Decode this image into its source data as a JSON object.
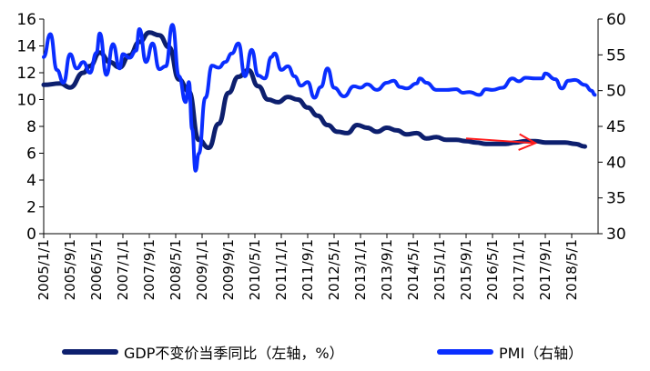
{
  "colors": {
    "gdp": "#0d1f6e",
    "pmi": "#0a2eff",
    "arrow": "#ff1a1a"
  },
  "legend": {
    "gdp_label": "GDP不变价当季同比（左轴，%）",
    "pmi_label": "PMI（右轴）"
  },
  "chart_data": {
    "type": "line",
    "title": "",
    "x_ticks": [
      "2005/1/1",
      "2005/9/1",
      "2006/5/1",
      "2007/1/1",
      "2007/9/1",
      "2008/5/1",
      "2009/1/1",
      "2009/9/1",
      "2010/5/1",
      "2011/1/1",
      "2011/9/1",
      "2012/5/1",
      "2013/1/1",
      "2013/9/1",
      "2014/5/1",
      "2015/1/1",
      "2015/9/1",
      "2016/5/1",
      "2017/1/1",
      "2017/9/1",
      "2018/5/1"
    ],
    "y_left": {
      "min": 0,
      "max": 16,
      "ticks": [
        0,
        2,
        4,
        6,
        8,
        10,
        12,
        14,
        16
      ]
    },
    "y_right": {
      "min": 30,
      "max": 60,
      "ticks": [
        30,
        35,
        40,
        45,
        50,
        55,
        60
      ]
    },
    "annotation": "arrow",
    "series": [
      {
        "name": "GDP不变价当季同比（左轴，%）",
        "axis": "left",
        "points": [
          [
            "2005/1",
            11.1
          ],
          [
            "2005/6",
            11.2
          ],
          [
            "2005/9",
            10.9
          ],
          [
            "2006/1",
            12.0
          ],
          [
            "2006/3",
            12.5
          ],
          [
            "2006/6",
            13.5
          ],
          [
            "2006/9",
            12.8
          ],
          [
            "2006/12",
            12.4
          ],
          [
            "2007/3",
            13.3
          ],
          [
            "2007/6",
            14.3
          ],
          [
            "2007/9",
            15.0
          ],
          [
            "2007/12",
            14.8
          ],
          [
            "2008/3",
            13.9
          ],
          [
            "2008/6",
            11.5
          ],
          [
            "2008/9",
            10.6
          ],
          [
            "2008/12",
            7.0
          ],
          [
            "2009/3",
            6.4
          ],
          [
            "2009/6",
            8.2
          ],
          [
            "2009/9",
            10.5
          ],
          [
            "2009/12",
            11.7
          ],
          [
            "2010/3",
            12.2
          ],
          [
            "2010/6",
            11.0
          ],
          [
            "2010/9",
            10.0
          ],
          [
            "2010/12",
            9.8
          ],
          [
            "2011/3",
            10.2
          ],
          [
            "2011/6",
            10.0
          ],
          [
            "2011/9",
            9.4
          ],
          [
            "2011/12",
            8.8
          ],
          [
            "2012/3",
            8.1
          ],
          [
            "2012/6",
            7.6
          ],
          [
            "2012/9",
            7.5
          ],
          [
            "2012/12",
            8.1
          ],
          [
            "2013/3",
            7.9
          ],
          [
            "2013/6",
            7.6
          ],
          [
            "2013/9",
            7.9
          ],
          [
            "2013/12",
            7.7
          ],
          [
            "2014/3",
            7.4
          ],
          [
            "2014/6",
            7.5
          ],
          [
            "2014/9",
            7.1
          ],
          [
            "2014/12",
            7.2
          ],
          [
            "2015/3",
            7.0
          ],
          [
            "2015/6",
            7.0
          ],
          [
            "2015/9",
            6.9
          ],
          [
            "2015/12",
            6.8
          ],
          [
            "2016/3",
            6.7
          ],
          [
            "2016/6",
            6.7
          ],
          [
            "2016/9",
            6.7
          ],
          [
            "2016/12",
            6.8
          ],
          [
            "2017/3",
            6.9
          ],
          [
            "2017/6",
            6.9
          ],
          [
            "2017/9",
            6.8
          ],
          [
            "2017/12",
            6.8
          ],
          [
            "2018/3",
            6.8
          ],
          [
            "2018/6",
            6.7
          ],
          [
            "2018/9",
            6.5
          ]
        ]
      },
      {
        "name": "PMI（右轴）",
        "axis": "right",
        "points": [
          [
            "2005/1",
            54.7
          ],
          [
            "2005/3",
            57.9
          ],
          [
            "2005/5",
            52.9
          ],
          [
            "2005/7",
            51.1
          ],
          [
            "2005/9",
            55.1
          ],
          [
            "2005/11",
            53.1
          ],
          [
            "2006/1",
            54.0
          ],
          [
            "2006/3",
            52.5
          ],
          [
            "2006/5",
            55.3
          ],
          [
            "2006/6",
            58.0
          ],
          [
            "2006/8",
            52.2
          ],
          [
            "2006/10",
            56.5
          ],
          [
            "2006/12",
            53.1
          ],
          [
            "2007/1",
            55.1
          ],
          [
            "2007/3",
            54.6
          ],
          [
            "2007/5",
            55.6
          ],
          [
            "2007/6",
            58.6
          ],
          [
            "2007/8",
            54.0
          ],
          [
            "2007/10",
            56.6
          ],
          [
            "2007/12",
            53.0
          ],
          [
            "2008/2",
            53.4
          ],
          [
            "2008/4",
            59.2
          ],
          [
            "2008/6",
            52.0
          ],
          [
            "2008/8",
            48.4
          ],
          [
            "2008/9",
            51.2
          ],
          [
            "2008/10",
            44.6
          ],
          [
            "2008/11",
            38.8
          ],
          [
            "2008/12",
            41.2
          ],
          [
            "2009/2",
            49.0
          ],
          [
            "2009/4",
            53.5
          ],
          [
            "2009/6",
            53.2
          ],
          [
            "2009/8",
            54.0
          ],
          [
            "2009/10",
            55.2
          ],
          [
            "2009/12",
            56.6
          ],
          [
            "2010/2",
            52.0
          ],
          [
            "2010/4",
            55.7
          ],
          [
            "2010/6",
            52.1
          ],
          [
            "2010/8",
            51.7
          ],
          [
            "2010/10",
            54.7
          ],
          [
            "2010/11",
            55.2
          ],
          [
            "2011/1",
            52.9
          ],
          [
            "2011/3",
            53.4
          ],
          [
            "2011/5",
            52.0
          ],
          [
            "2011/7",
            50.7
          ],
          [
            "2011/9",
            51.2
          ],
          [
            "2011/11",
            49.0
          ],
          [
            "2012/1",
            50.5
          ],
          [
            "2012/3",
            53.1
          ],
          [
            "2012/5",
            50.4
          ],
          [
            "2012/8",
            49.2
          ],
          [
            "2012/11",
            50.6
          ],
          [
            "2013/1",
            50.4
          ],
          [
            "2013/3",
            50.9
          ],
          [
            "2013/6",
            50.1
          ],
          [
            "2013/9",
            51.1
          ],
          [
            "2013/11",
            51.4
          ],
          [
            "2014/1",
            50.5
          ],
          [
            "2014/3",
            50.3
          ],
          [
            "2014/6",
            51.0
          ],
          [
            "2014/7",
            51.7
          ],
          [
            "2014/9",
            51.1
          ],
          [
            "2014/12",
            50.1
          ],
          [
            "2015/3",
            50.1
          ],
          [
            "2015/6",
            50.2
          ],
          [
            "2015/8",
            49.7
          ],
          [
            "2015/10",
            49.8
          ],
          [
            "2016/1",
            49.4
          ],
          [
            "2016/3",
            50.2
          ],
          [
            "2016/5",
            50.1
          ],
          [
            "2016/8",
            50.4
          ],
          [
            "2016/11",
            51.7
          ],
          [
            "2017/1",
            51.3
          ],
          [
            "2017/3",
            51.8
          ],
          [
            "2017/6",
            51.7
          ],
          [
            "2017/8",
            51.7
          ],
          [
            "2017/9",
            52.4
          ],
          [
            "2017/12",
            51.6
          ],
          [
            "2018/2",
            50.3
          ],
          [
            "2018/4",
            51.4
          ],
          [
            "2018/6",
            51.5
          ],
          [
            "2018/9",
            50.8
          ],
          [
            "2018/11",
            50.0
          ],
          [
            "2018/12",
            49.4
          ]
        ]
      }
    ]
  }
}
